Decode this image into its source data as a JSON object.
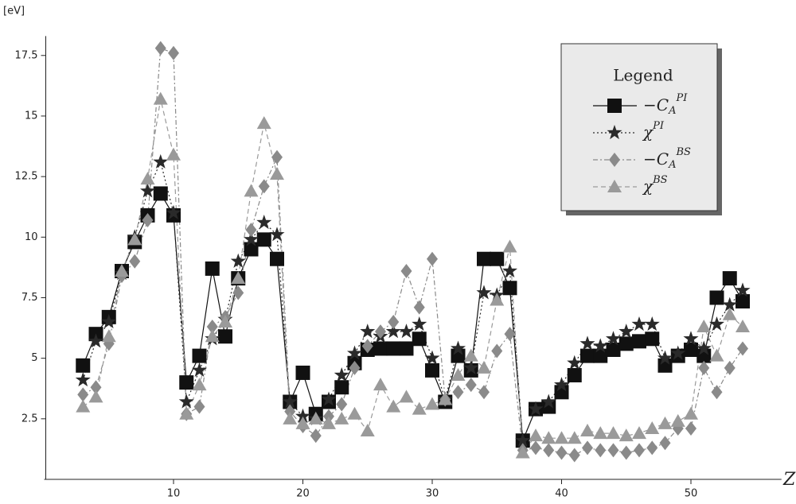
{
  "chart_data": {
    "type": "line",
    "y_label": "[eV]",
    "x_label": "Z",
    "legend_title": "Legend",
    "x": [
      3,
      4,
      5,
      6,
      7,
      8,
      9,
      10,
      11,
      12,
      13,
      14,
      15,
      16,
      17,
      18,
      19,
      20,
      21,
      22,
      23,
      24,
      25,
      26,
      27,
      28,
      29,
      30,
      31,
      32,
      33,
      34,
      35,
      36,
      37,
      38,
      39,
      40,
      41,
      42,
      43,
      44,
      45,
      46,
      47,
      48,
      49,
      50,
      51,
      52,
      53,
      54
    ],
    "xlim": [
      0,
      57
    ],
    "xticks": [
      10,
      20,
      30,
      40,
      50
    ],
    "ylim": [
      0,
      18.3
    ],
    "yticks": [
      2.5,
      5,
      7.5,
      10,
      12.5,
      15,
      17.5
    ],
    "legend": "upper right",
    "series": [
      {
        "name": "−C",
        "name_sub": "A",
        "name_sup": "PI",
        "color": "#111111",
        "marker": "square",
        "line_style": "solid",
        "values": [
          4.7,
          6.0,
          6.7,
          8.6,
          9.8,
          10.9,
          11.8,
          10.9,
          4.0,
          5.1,
          8.7,
          5.9,
          8.3,
          9.5,
          9.9,
          9.1,
          3.2,
          4.4,
          2.7,
          3.2,
          3.8,
          4.8,
          5.35,
          5.4,
          5.4,
          5.4,
          5.8,
          4.5,
          3.2,
          5.1,
          4.5,
          9.1,
          9.1,
          7.9,
          1.6,
          2.9,
          3.0,
          3.6,
          4.3,
          5.1,
          5.1,
          5.35,
          5.6,
          5.7,
          5.8,
          4.7,
          5.1,
          5.35,
          5.1,
          7.5,
          8.3,
          7.35
        ]
      },
      {
        "name": "χ",
        "name_sup": "PI",
        "color": "#2a2a2a",
        "marker": "star",
        "line_style": "dotted",
        "values": [
          4.1,
          5.7,
          6.5,
          8.5,
          10.0,
          11.9,
          13.1,
          11.0,
          3.2,
          4.5,
          5.8,
          6.6,
          9.0,
          9.9,
          10.6,
          10.1,
          3.2,
          2.6,
          2.5,
          3.3,
          4.3,
          5.2,
          6.1,
          5.9,
          6.1,
          6.1,
          6.4,
          5.0,
          3.3,
          5.4,
          4.6,
          7.7,
          7.6,
          8.6,
          1.6,
          2.9,
          3.2,
          3.9,
          4.8,
          5.6,
          5.5,
          5.8,
          6.1,
          6.4,
          6.4,
          5.0,
          5.2,
          5.8,
          5.4,
          6.4,
          7.2,
          7.8
        ]
      },
      {
        "name": "−C",
        "name_sub": "A",
        "name_sup": "BS",
        "color": "#8a8a8a",
        "marker": "diamond",
        "line_style": "dashdot",
        "values": [
          3.5,
          3.8,
          5.6,
          8.4,
          9.0,
          10.7,
          17.8,
          17.6,
          2.7,
          3.0,
          6.3,
          6.7,
          7.7,
          10.3,
          12.1,
          13.3,
          2.8,
          2.2,
          1.8,
          2.6,
          3.1,
          4.6,
          5.5,
          6.1,
          6.5,
          8.6,
          7.1,
          9.1,
          3.3,
          3.6,
          3.9,
          3.6,
          5.3,
          6.0,
          1.2,
          1.3,
          1.2,
          1.1,
          1.0,
          1.3,
          1.2,
          1.2,
          1.1,
          1.2,
          1.3,
          1.5,
          2.1,
          2.1,
          4.6,
          3.6,
          4.6,
          5.4
        ]
      },
      {
        "name": "χ",
        "name_sup": "BS",
        "color": "#9a9a9a",
        "marker": "triangle",
        "line_style": "dashed",
        "values": [
          3.0,
          3.4,
          5.9,
          8.6,
          9.9,
          12.4,
          15.7,
          13.4,
          2.7,
          3.9,
          5.9,
          6.5,
          8.3,
          11.9,
          14.7,
          12.6,
          2.5,
          2.3,
          2.5,
          2.3,
          2.5,
          2.7,
          2.0,
          3.9,
          3.0,
          3.4,
          2.9,
          3.1,
          3.3,
          4.3,
          5.1,
          4.6,
          7.4,
          9.6,
          1.1,
          1.8,
          1.7,
          1.7,
          1.7,
          2.0,
          1.9,
          1.9,
          1.8,
          1.9,
          2.1,
          2.3,
          2.4,
          2.7,
          6.3,
          5.1,
          6.8,
          6.3
        ]
      }
    ]
  }
}
